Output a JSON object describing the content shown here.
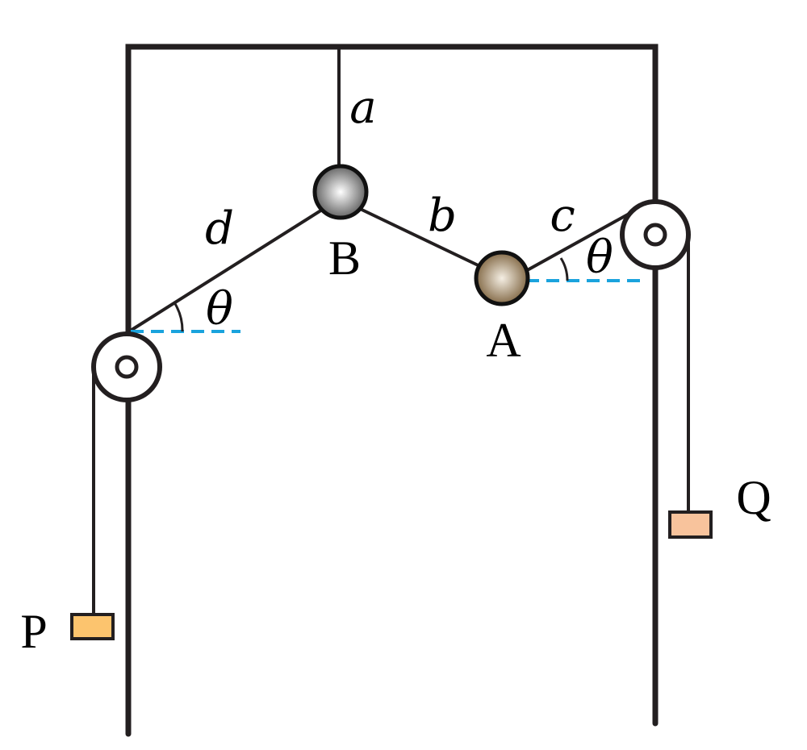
{
  "labels": {
    "rope_a": "a",
    "rope_b": "b",
    "rope_c": "c",
    "rope_d": "d",
    "ball_B": "B",
    "ball_A": "A",
    "angle_left": "θ",
    "angle_right": "θ",
    "block_P": "P",
    "block_Q": "Q"
  },
  "colors": {
    "frame": "#231f20",
    "rope": "#231f20",
    "dashed_guide": "#1aa3dd",
    "ball_B_center": "#ffffff",
    "ball_B_edge": "#555555",
    "ball_A_center": "#f5efe4",
    "ball_A_edge": "#7a5f3a",
    "block_P": "#fcc46e",
    "block_Q": "#f8c39c"
  }
}
